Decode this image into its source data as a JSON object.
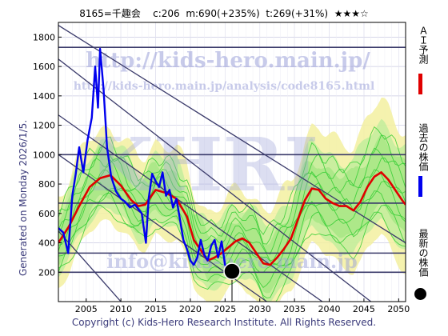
{
  "header": {
    "code_name": "8165=千趣会",
    "current": "c:206",
    "mid": "m:690(+235%)",
    "target": "t:269(+31%)",
    "stars": "★★★☆"
  },
  "side_text": "Generated on Monday 2026/1/5.",
  "copyright": "Copyright (c) Kids-Hero Research Institute. All Rights Reserved.",
  "watermarks": {
    "url_big": "http://kids-hero.main.jp/",
    "url_small": "http://kids-hero.main.jp/analysis/code8165.html",
    "logo": "KHRI",
    "email": "info@kids-hero.main.jp"
  },
  "legend": {
    "forecast": "ＡＩ予測",
    "past": "過去の株価",
    "latest": "最新の株価"
  },
  "colors": {
    "forecast": "#e00000",
    "past": "#0000ee",
    "latest": "#000000",
    "band_green": "#33cc33",
    "band_yellow": "#f3f0a0",
    "trend": "#3a3a6a",
    "grid": "#c8c8e0"
  },
  "chart_data": {
    "type": "line",
    "xlim": [
      2001,
      2051
    ],
    "ylim": [
      0,
      1900
    ],
    "x_ticks": [
      2005,
      2010,
      2015,
      2020,
      2025,
      2030,
      2035,
      2040,
      2045,
      2050
    ],
    "y_ticks": [
      200,
      400,
      600,
      800,
      1000,
      1200,
      1400,
      1600,
      1800
    ],
    "grid": true,
    "horizontal_levels": [
      1730,
      1000,
      670,
      330,
      200
    ],
    "trend_lines": [
      {
        "x": [
          2001,
          2051
        ],
        "y": [
          1880,
          400
        ]
      },
      {
        "x": [
          2001,
          2046
        ],
        "y": [
          1650,
          0
        ]
      },
      {
        "x": [
          2001,
          2039
        ],
        "y": [
          1270,
          0
        ]
      },
      {
        "x": [
          2001,
          2031
        ],
        "y": [
          1000,
          0
        ]
      },
      {
        "x": [
          2001,
          2010
        ],
        "y": [
          480,
          0
        ]
      }
    ],
    "series": [
      {
        "name": "過去の株価",
        "x": [
          2001,
          2001.7,
          2002.4,
          2003,
          2003.5,
          2004,
          2004.6,
          2005.2,
          2005.8,
          2006.3,
          2006.7,
          2007,
          2007.5,
          2008,
          2008.6,
          2009.3,
          2010,
          2010.6,
          2011.3,
          2012,
          2013,
          2013.6,
          2014,
          2014.5,
          2015,
          2015.5,
          2016,
          2016.5,
          2017,
          2017.5,
          2018,
          2018.5,
          2019,
          2019.5,
          2020,
          2020.5,
          2021,
          2021.5,
          2022,
          2022.5,
          2023,
          2023.5,
          2024,
          2024.5,
          2025,
          2025.5
        ],
        "y": [
          500,
          470,
          330,
          720,
          870,
          1050,
          880,
          1100,
          1250,
          1600,
          1320,
          1720,
          1450,
          1050,
          850,
          750,
          700,
          680,
          640,
          660,
          600,
          400,
          700,
          870,
          820,
          780,
          880,
          720,
          760,
          640,
          700,
          560,
          420,
          360,
          280,
          250,
          300,
          420,
          320,
          280,
          380,
          420,
          300,
          410,
          250,
          220
        ]
      },
      {
        "name": "ＡＩ予測",
        "x": [
          2001,
          2002.5,
          2004,
          2005.5,
          2007,
          2008.5,
          2010,
          2011.5,
          2012.5,
          2013.5,
          2015,
          2016.5,
          2018,
          2019.5,
          2020.5,
          2021.5,
          2022.5,
          2023.5,
          2024.5,
          2025.5,
          2026.5,
          2027.5,
          2028.5,
          2029.5,
          2030.5,
          2031.5,
          2032.5,
          2033.5,
          2034.5,
          2035.5,
          2036.5,
          2037.5,
          2038.5,
          2039.5,
          2040.5,
          2041.5,
          2042.5,
          2043.5,
          2044.5,
          2045.5,
          2046.5,
          2047.5,
          2048.5,
          2049.5,
          2050.5,
          2051
        ],
        "y": [
          400,
          510,
          650,
          780,
          840,
          860,
          790,
          690,
          650,
          660,
          760,
          740,
          700,
          580,
          420,
          350,
          280,
          300,
          330,
          370,
          410,
          430,
          400,
          330,
          260,
          250,
          300,
          360,
          430,
          560,
          690,
          770,
          760,
          700,
          670,
          650,
          650,
          620,
          680,
          780,
          850,
          880,
          830,
          760,
          690,
          660
        ]
      }
    ],
    "latest_point": {
      "x": 2026,
      "y": 206
    }
  }
}
